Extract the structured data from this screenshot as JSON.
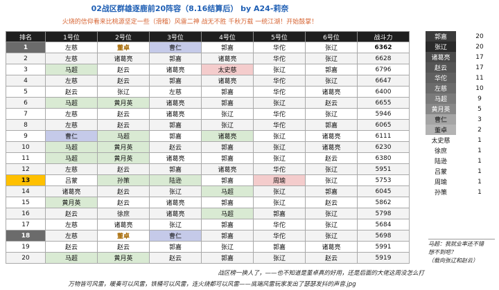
{
  "title": "02战区群雄逐鹿前20阵容（8.16结算后） by A24-莉奈",
  "subtitle": "火烧的信仰看来比桃源坚定一些（滑稽）风雷二神 战无不胜 千秋万载 一统江湖！开始鼓掌！",
  "colors": {
    "header_bg": "#1e1e1e",
    "blue_cell": "#c5cae9",
    "green_cell": "#d9ead3",
    "pink_cell": "#f4cccc",
    "gold_cell": "#fcdc8a",
    "gold_text": "#a66800",
    "rank_gray": "#6b6b6b",
    "rank_orange": "#ffc000",
    "row_light": "#f3f3f3"
  },
  "table": {
    "headers": [
      "排名",
      "1号位",
      "2号位",
      "3号位",
      "4号位",
      "5号位",
      "6号位",
      "战斗力"
    ],
    "rows": [
      {
        "rank": "1",
        "cells": [
          "左慈",
          "董卓",
          "曹仁",
          "郭嘉",
          "华佗",
          "张辽"
        ],
        "power": "6362"
      },
      {
        "rank": "2",
        "cells": [
          "左慈",
          "诸葛亮",
          "郭嘉",
          "诸葛亮",
          "华佗",
          "张辽"
        ],
        "power": "6628"
      },
      {
        "rank": "3",
        "cells": [
          "马超",
          "赵云",
          "诸葛亮",
          "太史慈",
          "张辽",
          "郭嘉"
        ],
        "power": "6796"
      },
      {
        "rank": "4",
        "cells": [
          "左慈",
          "赵云",
          "郭嘉",
          "诸葛亮",
          "华佗",
          "张辽"
        ],
        "power": "6647"
      },
      {
        "rank": "5",
        "cells": [
          "赵云",
          "张辽",
          "左慈",
          "郭嘉",
          "华佗",
          "诸葛亮"
        ],
        "power": "6400"
      },
      {
        "rank": "6",
        "cells": [
          "马超",
          "黄月英",
          "诸葛亮",
          "郭嘉",
          "张辽",
          "赵云"
        ],
        "power": "6655"
      },
      {
        "rank": "7",
        "cells": [
          "左慈",
          "赵云",
          "诸葛亮",
          "张辽",
          "华佗",
          "张辽"
        ],
        "power": "5946"
      },
      {
        "rank": "8",
        "cells": [
          "左慈",
          "赵云",
          "郭嘉",
          "张辽",
          "华佗",
          "郭嘉"
        ],
        "power": "6065"
      },
      {
        "rank": "9",
        "cells": [
          "曹仁",
          "马超",
          "郭嘉",
          "诸葛亮",
          "张辽",
          "诸葛亮"
        ],
        "power": "6111"
      },
      {
        "rank": "10",
        "cells": [
          "马超",
          "黄月英",
          "赵云",
          "郭嘉",
          "张辽",
          "诸葛亮"
        ],
        "power": "6230"
      },
      {
        "rank": "11",
        "cells": [
          "马超",
          "黄月英",
          "诸葛亮",
          "郭嘉",
          "张辽",
          "赵云"
        ],
        "power": "6380"
      },
      {
        "rank": "12",
        "cells": [
          "左慈",
          "赵云",
          "郭嘉",
          "诸葛亮",
          "华佗",
          "张辽"
        ],
        "power": "5951"
      },
      {
        "rank": "13",
        "cells": [
          "吕蒙",
          "孙策",
          "陆逊",
          "郭嘉",
          "周瑜",
          "张辽"
        ],
        "power": "5753"
      },
      {
        "rank": "14",
        "cells": [
          "诸葛亮",
          "赵云",
          "张辽",
          "马超",
          "张辽",
          "郭嘉"
        ],
        "power": "6045"
      },
      {
        "rank": "15",
        "cells": [
          "黄月英",
          "赵云",
          "诸葛亮",
          "郭嘉",
          "张辽",
          "赵云"
        ],
        "power": "5862"
      },
      {
        "rank": "16",
        "cells": [
          "赵云",
          "徐庶",
          "诸葛亮",
          "马超",
          "郭嘉",
          "张辽"
        ],
        "power": "5798"
      },
      {
        "rank": "17",
        "cells": [
          "左慈",
          "诸葛亮",
          "张辽",
          "郭嘉",
          "华佗",
          "张辽"
        ],
        "power": "5684"
      },
      {
        "rank": "18",
        "cells": [
          "左慈",
          "董卓",
          "曹仁",
          "郭嘉",
          "华佗",
          "张辽"
        ],
        "power": "5698"
      },
      {
        "rank": "19",
        "cells": [
          "赵云",
          "赵云",
          "郭嘉",
          "张辽",
          "郭嘉",
          "诸葛亮"
        ],
        "power": "5991"
      },
      {
        "rank": "20",
        "cells": [
          "马超",
          "黄月英",
          "赵云",
          "郭嘉",
          "张辽",
          "赵云"
        ],
        "power": "5919"
      }
    ]
  },
  "counts": [
    {
      "name": "郭嘉",
      "count": "20"
    },
    {
      "name": "张辽",
      "count": "20"
    },
    {
      "name": "诸葛亮",
      "count": "17"
    },
    {
      "name": "赵云",
      "count": "17"
    },
    {
      "name": "华佗",
      "count": "11"
    },
    {
      "name": "左慈",
      "count": "10"
    },
    {
      "name": "马超",
      "count": "9"
    },
    {
      "name": "黄月英",
      "count": "5"
    },
    {
      "name": "曹仁",
      "count": "3"
    },
    {
      "name": "董卓",
      "count": "2"
    },
    {
      "name": "太史慈",
      "count": "1"
    },
    {
      "name": "徐庶",
      "count": "1"
    },
    {
      "name": "陆逊",
      "count": "1"
    },
    {
      "name": "吕蒙",
      "count": "1"
    },
    {
      "name": "周瑜",
      "count": "1"
    },
    {
      "name": "孙策",
      "count": "1"
    }
  ],
  "note": "马超：我就业率还不错\n想不到吧？\n（载向张辽和赵云）",
  "footer_line1": "战区榜一换人了，——也不知道是董卓真的好用，还是后面的大佬这周没怎么打",
  "footer_line2": "万物皆可风雷，暖奏可以风雷，铁桶可以风雷，连火烧都可以风雷——底端风雷玩家发出了瑟瑟发抖的声音.jpg"
}
